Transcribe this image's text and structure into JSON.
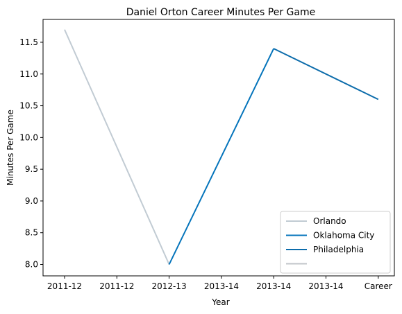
{
  "chart_data": {
    "type": "line",
    "title": "Daniel Orton Career Minutes Per Game",
    "xlabel": "Year",
    "ylabel": "Minutes Per Game",
    "categories": [
      "2011-12",
      "2011-12",
      "2012-13",
      "2013-14",
      "2013-14",
      "2013-14",
      "Career"
    ],
    "ylim": [
      7.82,
      11.86
    ],
    "yticks": [
      8.0,
      8.5,
      9.0,
      9.5,
      10.0,
      10.5,
      11.0,
      11.5
    ],
    "ytick_labels": [
      "8.0",
      "8.5",
      "9.0",
      "9.5",
      "10.0",
      "10.5",
      "11.0",
      "11.5"
    ],
    "series": [
      {
        "name": "Orlando",
        "color": "#c1cbd3",
        "points": [
          [
            0,
            11.7
          ],
          [
            2,
            8.0
          ]
        ]
      },
      {
        "name": "Oklahoma City",
        "color": "#0474bb",
        "points": [
          [
            2,
            8.0
          ],
          [
            4,
            11.4
          ]
        ]
      },
      {
        "name": "Philadelphia",
        "color": "#0c6cab",
        "points": [
          [
            4,
            11.4
          ],
          [
            6,
            10.6
          ]
        ]
      },
      {
        "name": "",
        "color": "#c1c5c9",
        "points": []
      }
    ],
    "legend_position": "lower-right",
    "grid": false
  }
}
